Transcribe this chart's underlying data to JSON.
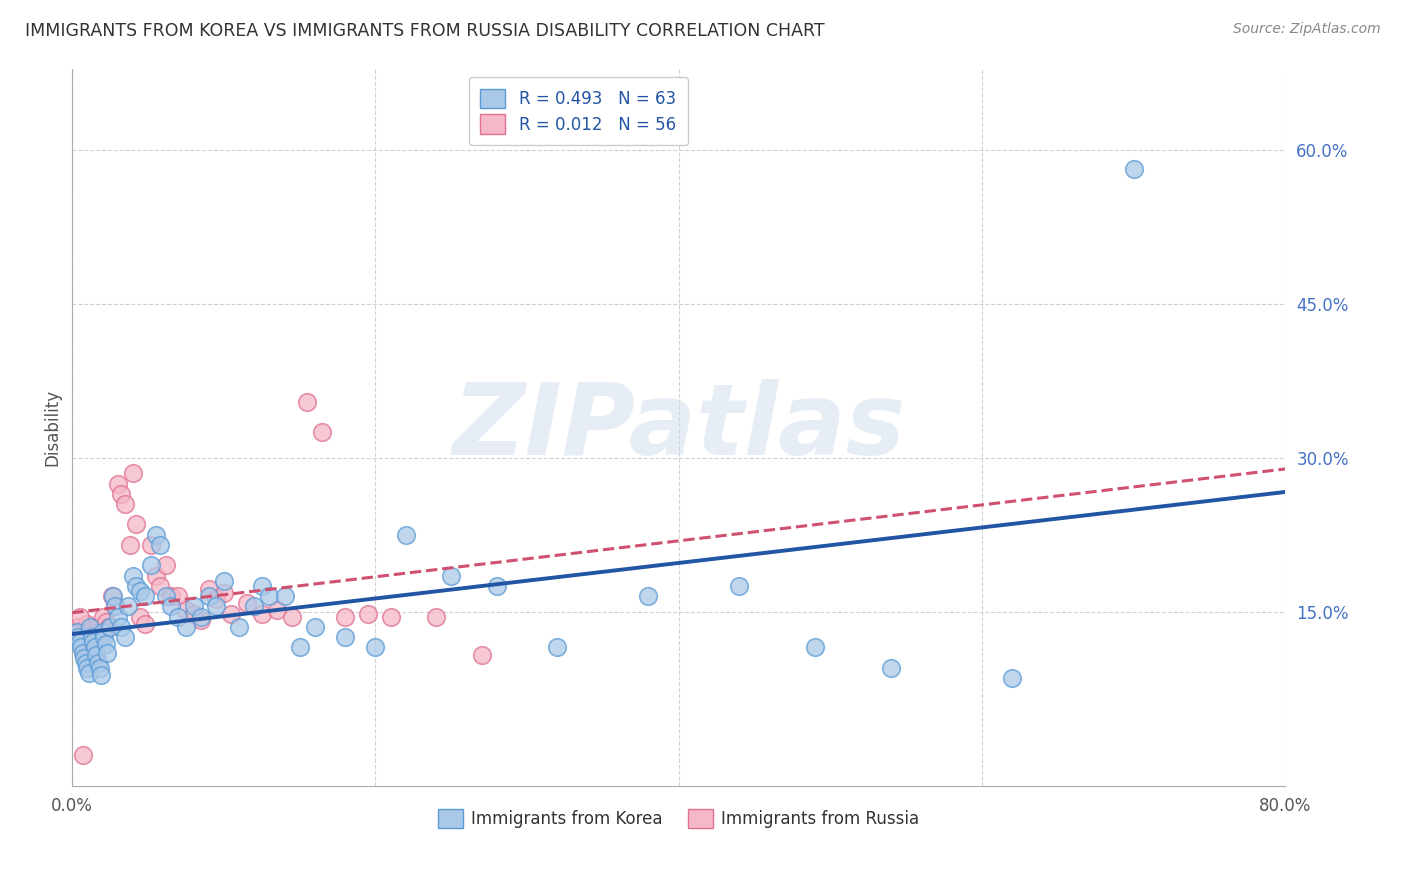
{
  "title": "IMMIGRANTS FROM KOREA VS IMMIGRANTS FROM RUSSIA DISABILITY CORRELATION CHART",
  "source": "Source: ZipAtlas.com",
  "ylabel": "Disability",
  "xlim": [
    0.0,
    0.8
  ],
  "ylim": [
    -0.02,
    0.68
  ],
  "xticks": [
    0.0,
    0.2,
    0.4,
    0.6,
    0.8
  ],
  "xtick_labels": [
    "0.0%",
    "",
    "",
    "",
    "80.0%"
  ],
  "yticks": [
    0.15,
    0.3,
    0.45,
    0.6
  ],
  "ytick_labels": [
    "15.0%",
    "30.0%",
    "45.0%",
    "60.0%"
  ],
  "korea_R": 0.493,
  "korea_N": 63,
  "russia_R": 0.012,
  "russia_N": 56,
  "korea_color": "#aac9e8",
  "russia_color": "#f4b8c8",
  "korea_edge_color": "#5b9bd5",
  "russia_edge_color": "#e07090",
  "korea_line_color": "#2255a4",
  "russia_line_color": "#d05070",
  "background_color": "#ffffff",
  "watermark": "ZIPatlas",
  "korea_x": [
    0.003,
    0.004,
    0.005,
    0.006,
    0.007,
    0.008,
    0.009,
    0.01,
    0.011,
    0.012,
    0.013,
    0.014,
    0.015,
    0.016,
    0.017,
    0.018,
    0.019,
    0.02,
    0.021,
    0.022,
    0.023,
    0.025,
    0.027,
    0.028,
    0.03,
    0.032,
    0.035,
    0.037,
    0.04,
    0.042,
    0.045,
    0.048,
    0.052,
    0.055,
    0.058,
    0.062,
    0.065,
    0.07,
    0.075,
    0.08,
    0.085,
    0.09,
    0.095,
    0.1,
    0.11,
    0.12,
    0.125,
    0.13,
    0.14,
    0.15,
    0.16,
    0.18,
    0.2,
    0.22,
    0.25,
    0.28,
    0.32,
    0.38,
    0.44,
    0.49,
    0.54,
    0.62,
    0.7
  ],
  "korea_y": [
    0.13,
    0.125,
    0.12,
    0.115,
    0.11,
    0.105,
    0.1,
    0.095,
    0.09,
    0.135,
    0.125,
    0.12,
    0.115,
    0.108,
    0.1,
    0.095,
    0.088,
    0.13,
    0.125,
    0.118,
    0.11,
    0.135,
    0.165,
    0.155,
    0.145,
    0.135,
    0.125,
    0.155,
    0.185,
    0.175,
    0.17,
    0.165,
    0.195,
    0.225,
    0.215,
    0.165,
    0.155,
    0.145,
    0.135,
    0.155,
    0.145,
    0.165,
    0.155,
    0.18,
    0.135,
    0.155,
    0.175,
    0.165,
    0.165,
    0.115,
    0.135,
    0.125,
    0.115,
    0.225,
    0.185,
    0.175,
    0.115,
    0.165,
    0.175,
    0.115,
    0.095,
    0.085,
    0.582
  ],
  "russia_x": [
    0.003,
    0.004,
    0.005,
    0.006,
    0.007,
    0.008,
    0.009,
    0.01,
    0.011,
    0.012,
    0.013,
    0.014,
    0.015,
    0.016,
    0.017,
    0.018,
    0.019,
    0.02,
    0.022,
    0.024,
    0.026,
    0.028,
    0.03,
    0.032,
    0.035,
    0.038,
    0.04,
    0.042,
    0.045,
    0.048,
    0.052,
    0.055,
    0.058,
    0.062,
    0.065,
    0.07,
    0.075,
    0.08,
    0.085,
    0.09,
    0.095,
    0.1,
    0.105,
    0.115,
    0.125,
    0.135,
    0.145,
    0.155,
    0.165,
    0.18,
    0.195,
    0.21,
    0.24,
    0.27,
    0.005,
    0.007
  ],
  "russia_y": [
    0.135,
    0.13,
    0.125,
    0.12,
    0.115,
    0.11,
    0.105,
    0.138,
    0.132,
    0.128,
    0.122,
    0.118,
    0.112,
    0.108,
    0.135,
    0.13,
    0.125,
    0.145,
    0.14,
    0.135,
    0.165,
    0.155,
    0.275,
    0.265,
    0.255,
    0.215,
    0.285,
    0.235,
    0.145,
    0.138,
    0.215,
    0.185,
    0.175,
    0.195,
    0.165,
    0.165,
    0.152,
    0.148,
    0.142,
    0.172,
    0.162,
    0.168,
    0.148,
    0.158,
    0.148,
    0.152,
    0.145,
    0.355,
    0.325,
    0.145,
    0.148,
    0.145,
    0.145,
    0.108,
    0.145,
    0.01
  ]
}
